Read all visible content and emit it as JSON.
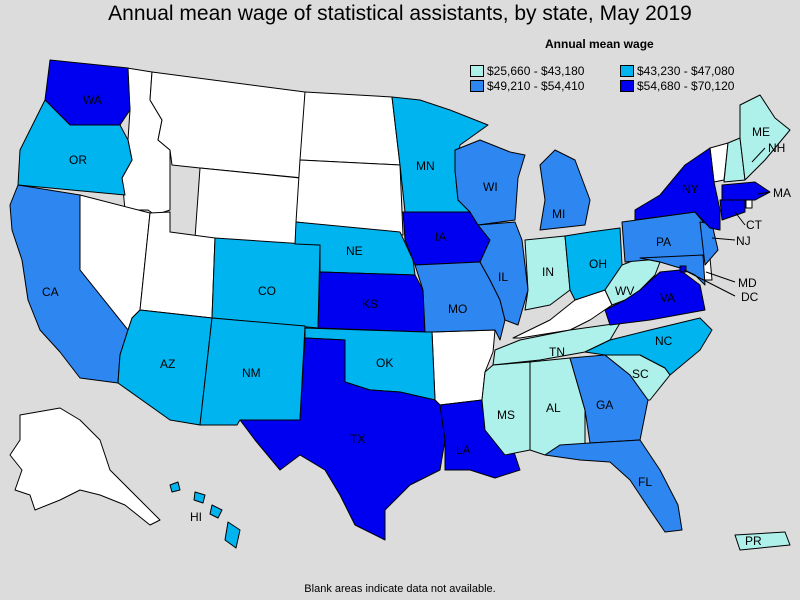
{
  "title": "Annual mean wage of statistical assistants, by state, May 2019",
  "legend_title": "Annual mean wage",
  "colors": {
    "c1": "#aef0ea",
    "c2": "#00b4f0",
    "c3": "#2e86f0",
    "c4": "#0000f0",
    "na": "#ffffff",
    "bg": "#dcdcdc"
  },
  "legend": [
    {
      "label": "$25,660 - $43,180",
      "color": "#aef0ea"
    },
    {
      "label": "$43,230 - $47,080",
      "color": "#00b4f0"
    },
    {
      "label": "$49,210 - $54,410",
      "color": "#2e86f0"
    },
    {
      "label": "$54,680 - $70,120",
      "color": "#0000f0"
    }
  ],
  "states": [
    {
      "abbr": "WA",
      "cls": "c4"
    },
    {
      "abbr": "OR",
      "cls": "c2"
    },
    {
      "abbr": "CA",
      "cls": "c3"
    },
    {
      "abbr": "AZ",
      "cls": "c2"
    },
    {
      "abbr": "CO",
      "cls": "c2"
    },
    {
      "abbr": "NM",
      "cls": "c2"
    },
    {
      "abbr": "NE",
      "cls": "c2"
    },
    {
      "abbr": "KS",
      "cls": "c4"
    },
    {
      "abbr": "OK",
      "cls": "c2"
    },
    {
      "abbr": "TX",
      "cls": "c4"
    },
    {
      "abbr": "MN",
      "cls": "c2"
    },
    {
      "abbr": "IA",
      "cls": "c4"
    },
    {
      "abbr": "MO",
      "cls": "c3"
    },
    {
      "abbr": "LA",
      "cls": "c4"
    },
    {
      "abbr": "WI",
      "cls": "c3"
    },
    {
      "abbr": "IL",
      "cls": "c3"
    },
    {
      "abbr": "MI",
      "cls": "c3"
    },
    {
      "abbr": "IN",
      "cls": "c1"
    },
    {
      "abbr": "OH",
      "cls": "c2"
    },
    {
      "abbr": "TN",
      "cls": "c1"
    },
    {
      "abbr": "MS",
      "cls": "c1"
    },
    {
      "abbr": "AL",
      "cls": "c1"
    },
    {
      "abbr": "GA",
      "cls": "c3"
    },
    {
      "abbr": "FL",
      "cls": "c3"
    },
    {
      "abbr": "SC",
      "cls": "c1"
    },
    {
      "abbr": "NC",
      "cls": "c2"
    },
    {
      "abbr": "VA",
      "cls": "c4"
    },
    {
      "abbr": "WV",
      "cls": "c1"
    },
    {
      "abbr": "PA",
      "cls": "c3"
    },
    {
      "abbr": "NY",
      "cls": "c4"
    },
    {
      "abbr": "ME",
      "cls": "c1"
    },
    {
      "abbr": "NH",
      "cls": "c1"
    },
    {
      "abbr": "MA",
      "cls": "c4"
    },
    {
      "abbr": "CT",
      "cls": "c4"
    },
    {
      "abbr": "NJ",
      "cls": "c3"
    },
    {
      "abbr": "MD",
      "cls": "c3"
    },
    {
      "abbr": "DC",
      "cls": "c4"
    },
    {
      "abbr": "HI",
      "cls": "c2"
    },
    {
      "abbr": "PR",
      "cls": "c1"
    }
  ],
  "note": "Blank areas indicate data not available."
}
